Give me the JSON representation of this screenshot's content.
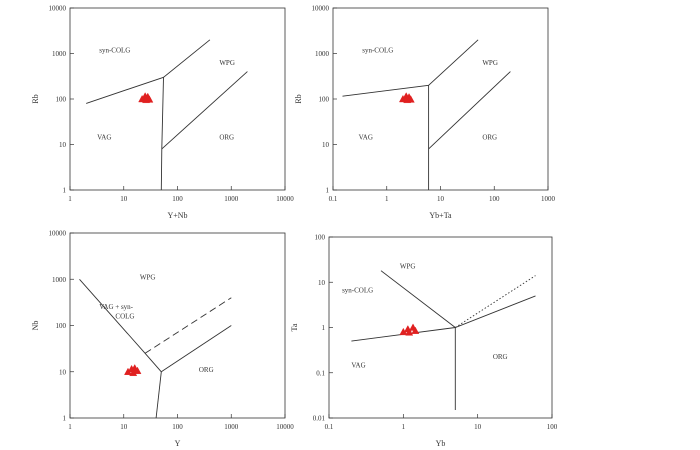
{
  "chart_data": [
    {
      "type": "scatter",
      "title": "",
      "xlabel": "Y+Nb",
      "ylabel": "Rb",
      "xscale": "log",
      "yscale": "log",
      "xlim": [
        1,
        10000
      ],
      "ylim": [
        1,
        10000
      ],
      "x_ticks": [
        "1",
        "10",
        "100",
        "1000",
        "10000"
      ],
      "y_ticks": [
        "1",
        "10",
        "100",
        "1000",
        "10000"
      ],
      "grid": false,
      "fields": [
        "syn-COLG",
        "WPG",
        "VAG",
        "ORG"
      ],
      "field_label_positions": [
        [
          3.5,
          1050
        ],
        [
          600,
          560
        ],
        [
          3.2,
          13
        ],
        [
          600,
          13
        ]
      ],
      "boundaries": [
        {
          "style": "solid",
          "points": [
            [
              2,
              80
            ],
            [
              55,
              300
            ],
            [
              400,
              2000
            ]
          ]
        },
        {
          "style": "solid",
          "points": [
            [
              55,
              300
            ],
            [
              51,
              8
            ],
            [
              50,
              1
            ]
          ]
        },
        {
          "style": "solid",
          "points": [
            [
              51,
              8
            ],
            [
              2000,
              400
            ]
          ]
        }
      ],
      "points": [
        [
          22,
          100
        ],
        [
          25,
          115
        ],
        [
          28,
          112
        ],
        [
          30,
          98
        ],
        [
          26,
          96
        ]
      ],
      "point_color": "#e02020"
    },
    {
      "type": "scatter",
      "title": "",
      "xlabel": "Yb+Ta",
      "ylabel": "Rb",
      "xscale": "log",
      "yscale": "log",
      "xlim": [
        0.1,
        1000
      ],
      "ylim": [
        1,
        10000
      ],
      "x_ticks": [
        "0.1",
        "1",
        "10",
        "100",
        "1000"
      ],
      "y_ticks": [
        "1",
        "10",
        "100",
        "1000",
        "10000"
      ],
      "grid": false,
      "fields": [
        "syn-COLG",
        "WPG",
        "VAG",
        "ORG"
      ],
      "field_label_positions": [
        [
          0.35,
          1050
        ],
        [
          60,
          560
        ],
        [
          0.3,
          13
        ],
        [
          60,
          13
        ]
      ],
      "boundaries": [
        {
          "style": "solid",
          "points": [
            [
              0.15,
              115
            ],
            [
              6,
              200
            ],
            [
              50,
              2000
            ]
          ]
        },
        {
          "style": "solid",
          "points": [
            [
              6,
              200
            ],
            [
              6,
              1
            ]
          ]
        },
        {
          "style": "solid",
          "points": [
            [
              6,
              8
            ],
            [
              200,
              400
            ]
          ]
        }
      ],
      "points": [
        [
          2.0,
          100
        ],
        [
          2.3,
          115
        ],
        [
          2.6,
          110
        ],
        [
          2.8,
          98
        ],
        [
          2.4,
          96
        ]
      ],
      "point_color": "#e02020"
    },
    {
      "type": "scatter",
      "title": "",
      "xlabel": "Y",
      "ylabel": "Nb",
      "xscale": "log",
      "yscale": "log",
      "xlim": [
        1,
        10000
      ],
      "ylim": [
        1,
        10000
      ],
      "x_ticks": [
        "1",
        "10",
        "100",
        "1000",
        "10000"
      ],
      "y_ticks": [
        "1",
        "10",
        "100",
        "1000",
        "10000"
      ],
      "grid": false,
      "fields": [
        "WPG",
        "VAG + syn-",
        "COLG",
        "ORG"
      ],
      "field_label_positions": [
        [
          20,
          1000
        ],
        [
          3.5,
          230
        ],
        [
          7,
          140
        ],
        [
          250,
          10
        ]
      ],
      "boundaries": [
        {
          "style": "solid",
          "points": [
            [
              1.5,
              1000
            ],
            [
              25,
              25
            ],
            [
              50,
              10
            ]
          ]
        },
        {
          "style": "solid",
          "points": [
            [
              50,
              10
            ],
            [
              40,
              1
            ]
          ]
        },
        {
          "style": "solid",
          "points": [
            [
              50,
              10
            ],
            [
              1000,
              100
            ]
          ]
        },
        {
          "style": "dashed",
          "points": [
            [
              25,
              25
            ],
            [
              1000,
              400
            ]
          ]
        }
      ],
      "points": [
        [
          12,
          10
        ],
        [
          14,
          11.5
        ],
        [
          16,
          12
        ],
        [
          18,
          10.5
        ],
        [
          15,
          9.5
        ]
      ],
      "point_color": "#e02020"
    },
    {
      "type": "scatter",
      "title": "",
      "xlabel": "Yb",
      "ylabel": "Ta",
      "xscale": "log",
      "yscale": "log",
      "xlim": [
        0.1,
        100
      ],
      "ylim": [
        0.01,
        100
      ],
      "x_ticks": [
        "0.1",
        "1",
        "10",
        "100"
      ],
      "y_ticks": [
        "0.01",
        "0.1",
        "1",
        "10",
        "100"
      ],
      "grid": false,
      "fields": [
        "WPG",
        "syn-COLG",
        "VAG",
        "ORG"
      ],
      "field_label_positions": [
        [
          0.9,
          20
        ],
        [
          0.15,
          6
        ],
        [
          0.2,
          0.13
        ],
        [
          16,
          0.2
        ]
      ],
      "boundaries": [
        {
          "style": "solid",
          "points": [
            [
              0.2,
              0.5
            ],
            [
              5,
              1
            ],
            [
              60,
              5
            ]
          ]
        },
        {
          "style": "solid",
          "points": [
            [
              0.5,
              18
            ],
            [
              5,
              1
            ]
          ]
        },
        {
          "style": "solid",
          "points": [
            [
              5,
              1
            ],
            [
              5,
              0.015
            ]
          ]
        },
        {
          "style": "dotted",
          "points": [
            [
              5,
              1
            ],
            [
              60,
              14
            ]
          ]
        }
      ],
      "points": [
        [
          1.0,
          0.8
        ],
        [
          1.15,
          0.92
        ],
        [
          1.35,
          1.0
        ],
        [
          1.45,
          0.85
        ],
        [
          1.2,
          0.78
        ]
      ],
      "point_color": "#e02020"
    }
  ]
}
